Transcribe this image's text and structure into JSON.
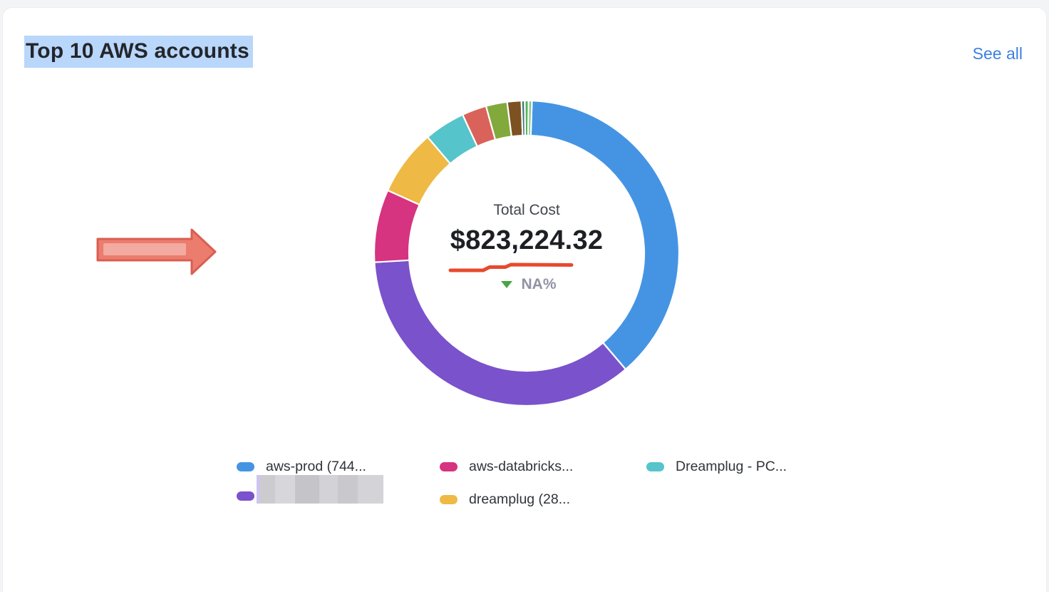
{
  "header": {
    "title": "Top 10 AWS accounts",
    "see_all_label": "See all",
    "title_selected": true
  },
  "colors": {
    "link_blue": "#3e7fe3",
    "selection_highlight": "#b9d6fb",
    "annotation_red_line": "#e8492d",
    "annotation_arrow_fill": "#ec7c6e",
    "annotation_arrow_border": "#d95f51",
    "delta_green": "#48a546",
    "card_background": "#ffffff",
    "page_background": "#f3f4f6"
  },
  "chart_data": {
    "type": "pie",
    "variant": "donut",
    "title": "Top 10 AWS accounts",
    "start_angle_deg": 2,
    "center": {
      "label": "Total Cost",
      "value": "$823,224.32",
      "delta_direction": "down",
      "delta_value": "NA%"
    },
    "series": [
      {
        "label": "aws-prod (744...",
        "color": "#4594e4",
        "pct": 38.2
      },
      {
        "label": "",
        "redacted": true,
        "color": "#7a52cb",
        "pct": 35.3
      },
      {
        "label": "aws-databricks...",
        "color": "#d63380",
        "pct": 7.7
      },
      {
        "label": "dreamplug (28...",
        "color": "#eeba45",
        "pct": 7.0
      },
      {
        "label": "Dreamplug - PC...",
        "color": "#55c4cb",
        "pct": 4.35
      },
      {
        "label": "",
        "color": "#d9635a",
        "pct": 2.6
      },
      {
        "label": "",
        "color": "#82a93c",
        "pct": 2.25
      },
      {
        "label": "",
        "color": "#7d5121",
        "pct": 1.5
      },
      {
        "label": "",
        "color": "#38767d",
        "pct": 0.35
      },
      {
        "label": "",
        "color": "#57b15c",
        "pct": 0.4
      },
      {
        "label": "",
        "color": "#7bc67e",
        "pct": 0.35
      }
    ],
    "legend_position": "bottom"
  },
  "legend": {
    "items": [
      {
        "label": "aws-prod (744...",
        "color": "#4594e4",
        "redacted": false
      },
      {
        "label": "",
        "color": "#7a52cb",
        "redacted": true
      },
      {
        "label": "aws-databricks...",
        "color": "#d63380",
        "redacted": false
      },
      {
        "label": "dreamplug (28...",
        "color": "#eeba45",
        "redacted": false
      },
      {
        "label": "Dreamplug - PC...",
        "color": "#55c4cb",
        "redacted": false
      }
    ]
  }
}
